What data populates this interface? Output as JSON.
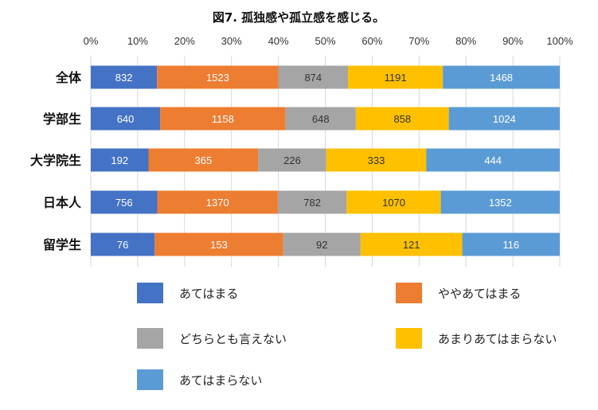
{
  "chart_data": {
    "type": "bar",
    "orientation": "horizontal",
    "stacked": "percent",
    "title": "図7. 孤独感や孤立感を感じる。",
    "xlabel": "",
    "ylabel": "",
    "xlim": [
      0,
      100
    ],
    "x_ticks": [
      "0%",
      "10%",
      "20%",
      "30%",
      "40%",
      "50%",
      "60%",
      "70%",
      "80%",
      "90%",
      "100%"
    ],
    "categories": [
      "全体",
      "学部生",
      "大学院生",
      "日本人",
      "留学生"
    ],
    "series": [
      {
        "name": "あてはまる",
        "color": "#4472c4",
        "label_color": "#ffffff",
        "values": [
          832,
          640,
          192,
          756,
          76
        ]
      },
      {
        "name": "ややあてはまる",
        "color": "#ed7d31",
        "label_color": "#ffffff",
        "values": [
          1523,
          1158,
          365,
          1370,
          153
        ]
      },
      {
        "name": "どちらとも言えない",
        "color": "#a5a5a5",
        "label_color": "#333333",
        "values": [
          874,
          648,
          226,
          782,
          92
        ]
      },
      {
        "name": "あまりあてはまらない",
        "color": "#ffc000",
        "label_color": "#333333",
        "values": [
          1191,
          858,
          333,
          1070,
          121
        ]
      },
      {
        "name": "あてはまらない",
        "color": "#5b9bd5",
        "label_color": "#ffffff",
        "values": [
          1468,
          1024,
          444,
          1352,
          116
        ]
      }
    ],
    "grid": true,
    "legend_position": "bottom"
  }
}
